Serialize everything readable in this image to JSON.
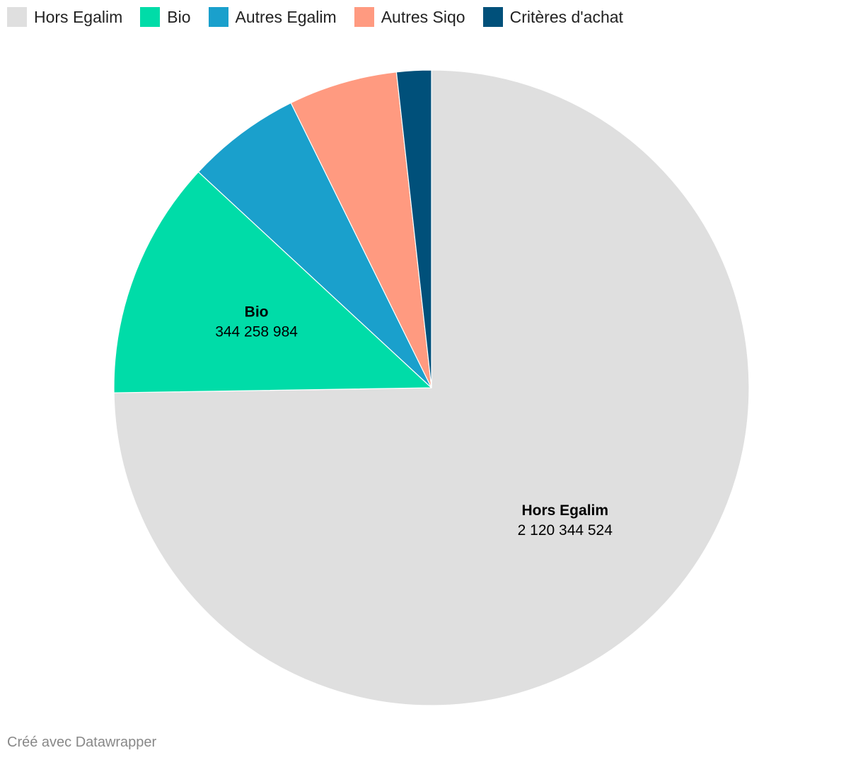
{
  "chart_data": {
    "type": "pie",
    "series": [
      {
        "name": "Hors Egalim",
        "value": 2120344524,
        "display_value": "2 120 344 524",
        "color": "#dfdfdf",
        "labeled": true
      },
      {
        "name": "Bio",
        "value": 344258984,
        "display_value": "344 258 984",
        "color": "#00dca8",
        "labeled": true
      },
      {
        "name": "Autres Egalim",
        "value": 165000000,
        "display_value": "",
        "color": "#1aa0cc",
        "labeled": false
      },
      {
        "name": "Autres Siqo",
        "value": 157000000,
        "display_value": "",
        "color": "#ff9a80",
        "labeled": false
      },
      {
        "name": "Critères d'achat",
        "value": 50000000,
        "display_value": "",
        "color": "#00507a",
        "labeled": false
      }
    ],
    "legend_position": "top-left",
    "start": "top",
    "direction": "clockwise"
  },
  "footer": {
    "credit": "Créé avec Datawrapper"
  }
}
